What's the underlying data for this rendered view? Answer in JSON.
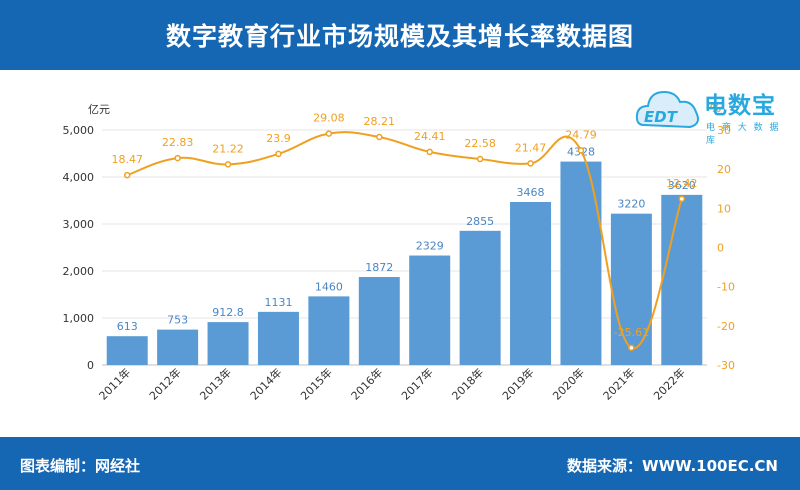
{
  "header": {
    "title": "数字教育行业市场规模及其增长率数据图"
  },
  "footer": {
    "author": "图表编制：网经社",
    "source": "数据来源：WWW.100EC.CN"
  },
  "logo": {
    "name": "电数宝",
    "sub": "电 商 大 数 据 库",
    "badge_text": "EDT",
    "color": "#29a8df"
  },
  "chart_data": {
    "type": "bar",
    "categories": [
      "2011年",
      "2012年",
      "2013年",
      "2014年",
      "2015年",
      "2016年",
      "2017年",
      "2018年",
      "2019年",
      "2020年",
      "2021年",
      "2022年"
    ],
    "series": [
      {
        "values": [
          613,
          753,
          912.8,
          1131,
          1460,
          1872,
          2329,
          2855,
          3468,
          4328,
          3220,
          3620
        ],
        "labels": [
          "613",
          "753",
          "912.8",
          "1131",
          "1460",
          "1872",
          "2329",
          "2855",
          "3468",
          "4328",
          "3220",
          "3620"
        ],
        "color": "#5b9bd5",
        "label_color": "#4a86c5"
      },
      {
        "type": "line",
        "axis": "right",
        "values": [
          18.47,
          22.83,
          21.22,
          23.9,
          29.08,
          28.21,
          24.41,
          22.58,
          21.47,
          24.79,
          -25.61,
          12.42
        ],
        "labels": [
          "18.47",
          "22.83",
          "21.22",
          "23.9",
          "29.08",
          "28.21",
          "24.41",
          "22.58",
          "21.47",
          "24.79",
          "-25.61",
          "12.42"
        ],
        "color": "#f0a020"
      }
    ],
    "y_left": {
      "label": "亿元",
      "min": 0,
      "max": 5000,
      "ticks": [
        0,
        1000,
        2000,
        3000,
        4000,
        5000
      ],
      "tick_labels": [
        "0",
        "1,000",
        "2,000",
        "3,000",
        "4,000",
        "5,000"
      ]
    },
    "y_right": {
      "label": "%",
      "min": -30,
      "max": 30,
      "ticks": [
        -30,
        -20,
        -10,
        0,
        10,
        20,
        30
      ],
      "tick_labels": [
        "-30",
        "-20",
        "-10",
        "0",
        "10",
        "20",
        "30"
      ],
      "color": "#f0a020"
    },
    "grid": true,
    "legend": "none"
  }
}
